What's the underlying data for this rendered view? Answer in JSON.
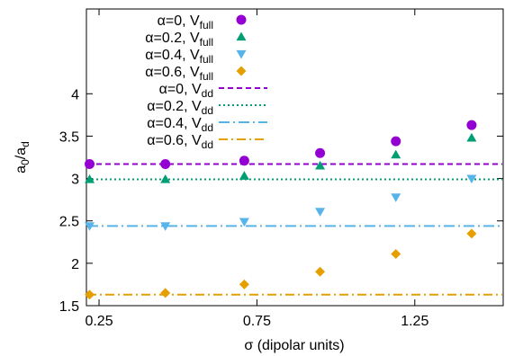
{
  "chart_data": {
    "type": "scatter",
    "xlabel": "σ (dipolar units)",
    "ylabel": {
      "base": "a",
      "sub1": "0",
      "slash": "/a",
      "sub2": "d"
    },
    "xlim": [
      0.21,
      1.53
    ],
    "ylim": [
      1.5,
      5.0
    ],
    "xticks": [
      "0.25",
      "0.75",
      "1.25"
    ],
    "xtick_values": [
      0.25,
      0.75,
      1.25
    ],
    "yticks": [
      "1.5",
      "2",
      "2.5",
      "3",
      "3.5",
      "4"
    ],
    "ytick_values": [
      1.5,
      2.0,
      2.5,
      3.0,
      3.5,
      4.0
    ],
    "grid": false,
    "legend_position": "top-right",
    "x": [
      0.22,
      0.46,
      0.71,
      0.95,
      1.19,
      1.43
    ],
    "series": [
      {
        "name": "α=0, V",
        "sub": "full",
        "kind": "points",
        "marker": "circle",
        "color": "#9400d3",
        "values": [
          3.17,
          3.17,
          3.21,
          3.3,
          3.44,
          3.63
        ]
      },
      {
        "name": "α=0.2, V",
        "sub": "full",
        "kind": "points",
        "marker": "triangle-up",
        "color": "#009e73",
        "values": [
          2.99,
          2.99,
          3.03,
          3.15,
          3.28,
          3.48
        ]
      },
      {
        "name": "α=0.4, V",
        "sub": "full",
        "kind": "points",
        "marker": "triangle-down",
        "color": "#56b4e9",
        "values": [
          2.44,
          2.44,
          2.49,
          2.61,
          2.78,
          3.0
        ]
      },
      {
        "name": "α=0.6, V",
        "sub": "full",
        "kind": "points",
        "marker": "diamond",
        "color": "#e69f00",
        "values": [
          1.63,
          1.65,
          1.75,
          1.9,
          2.11,
          2.35
        ]
      },
      {
        "name": "α=0, V",
        "sub": "dd",
        "kind": "line",
        "dash": "6,4",
        "color": "#9400d3",
        "value": 3.17
      },
      {
        "name": "α=0.2, V",
        "sub": "dd",
        "kind": "line",
        "dash": "2,3",
        "color": "#009e73",
        "value": 2.99
      },
      {
        "name": "α=0.4, V",
        "sub": "dd",
        "kind": "line",
        "dash": "12,4,2,4",
        "color": "#56b4e9",
        "value": 2.44
      },
      {
        "name": "α=0.6, V",
        "sub": "dd",
        "kind": "line",
        "dash": "10,4,2,4",
        "color": "#e69f00",
        "value": 1.63
      }
    ]
  }
}
